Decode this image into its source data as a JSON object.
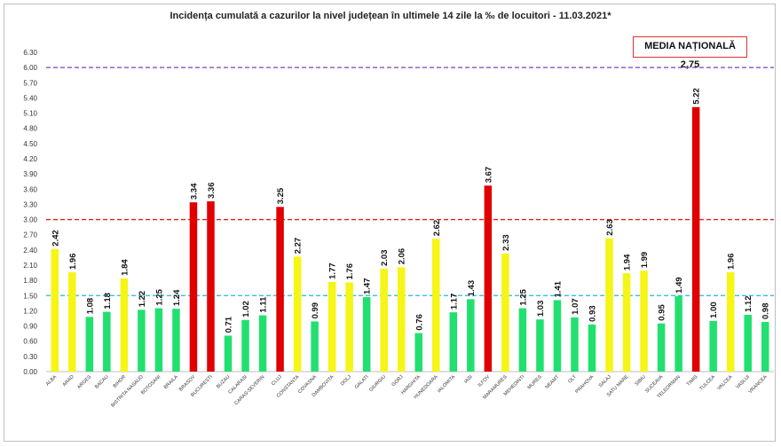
{
  "chart_data": {
    "type": "bar",
    "title": "Incidența cumulată a cazurilor la nivel județean în ultimele 14 zile la ‰ de locuitori - 11.03.2021*",
    "xlabel": "",
    "ylabel": "",
    "ylim": [
      0,
      6.3
    ],
    "y_ticks": [
      "0.00",
      "0.30",
      "0.60",
      "0.90",
      "1.20",
      "1.50",
      "1.80",
      "2.10",
      "2.40",
      "2.70",
      "3.00",
      "3.30",
      "3.60",
      "3.90",
      "4.20",
      "4.50",
      "4.80",
      "5.10",
      "5.40",
      "5.70",
      "6.00",
      "6.30"
    ],
    "categories": [
      "ALBA",
      "ARAD",
      "ARGES",
      "BACAU",
      "BIHOR",
      "BISTRITA NASAUD",
      "BOTOSANI",
      "BRAILA",
      "BRASOV",
      "BUCURESTI",
      "BUZAU",
      "CALARASI",
      "CARAS-SEVERIN",
      "CLUJ",
      "CONSTANTA",
      "COVASNA",
      "DAMBOVITA",
      "DOLJ",
      "GALATI",
      "GIURGIU",
      "GORJ",
      "HARGHITA",
      "HUNEDOARA",
      "IALOMITA",
      "IASI",
      "ILFOV",
      "MARAMURES",
      "MEHEDINTI",
      "MURES",
      "NEAMT",
      "OLT",
      "PRAHOVA",
      "SALAJ",
      "SATU MARE",
      "SIBIU",
      "SUCEAVA",
      "TELEORMAN",
      "TIMIS",
      "TULCEA",
      "VALCEA",
      "VASLUI",
      "VRANCEA"
    ],
    "values": [
      2.42,
      1.96,
      1.08,
      1.18,
      1.84,
      1.22,
      1.25,
      1.24,
      3.34,
      3.36,
      0.71,
      1.02,
      1.11,
      3.25,
      2.27,
      0.99,
      1.77,
      1.76,
      1.47,
      2.03,
      2.06,
      0.76,
      2.62,
      1.17,
      1.43,
      3.67,
      2.33,
      1.25,
      1.03,
      1.41,
      1.07,
      0.93,
      2.63,
      1.94,
      1.99,
      0.95,
      1.49,
      5.22,
      1.0,
      1.96,
      1.12,
      0.98
    ],
    "value_labels": [
      "2.42",
      "1.96",
      "1.08",
      "1.18",
      "1.84",
      "1.22",
      "1.25",
      "1.24",
      "3.34",
      "3.36",
      "0.71",
      "1.02",
      "1.11",
      "3.25",
      "2.27",
      "0.99",
      "1.77",
      "1.76",
      "1.47",
      "2.03",
      "2.06",
      "0.76",
      "2.62",
      "1.17",
      "1.43",
      "3.67",
      "2.33",
      "1.25",
      "1.03",
      "1.41",
      "1.07",
      "0.93",
      "2.63",
      "1.94",
      "1.99",
      "0.95",
      "1.49",
      "5.22",
      "1.00",
      "1.96",
      "1.12",
      "0.98"
    ],
    "reference_lines": [
      {
        "value": 6.0,
        "color": "#7b3fc4"
      },
      {
        "value": 3.0,
        "color": "#e02020"
      },
      {
        "value": 1.5,
        "color": "#22b5e6"
      }
    ],
    "color_thresholds": {
      "below_1_5": "#22e06f",
      "from_1_5_to_3": "#f5f516",
      "above_3": "#e00000"
    },
    "grid": false,
    "legend": "none",
    "annotation": "MEDIA NAȚIONALĂ  2,75"
  }
}
